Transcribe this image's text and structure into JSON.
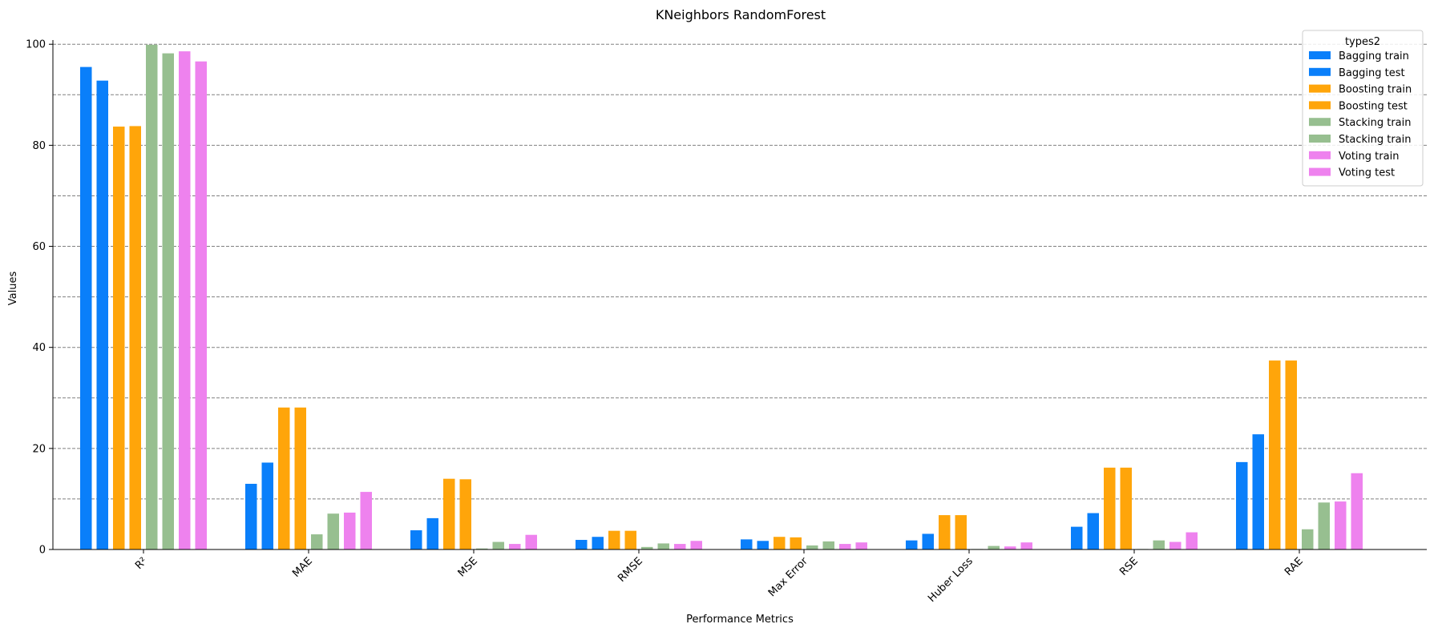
{
  "chart_data": {
    "type": "bar",
    "title": "KNeighbors RandomForest",
    "xlabel": "Performance Metrics",
    "ylabel": "Values",
    "ylim": [
      0,
      104
    ],
    "yticks": [
      0,
      20,
      40,
      60,
      80,
      100
    ],
    "ygrid": [
      10,
      20,
      30,
      40,
      50,
      60,
      70,
      80,
      90,
      100
    ],
    "grid": "horizontal dashed",
    "legend_position": "top-right",
    "legend_title": "types2",
    "categories": [
      "R²",
      "MAE",
      "MSE",
      "RMSE",
      "Max Error",
      "Huber Loss",
      "RSE",
      "RAE"
    ],
    "series": [
      {
        "name": "Bagging train",
        "color": "#0a7ffa",
        "values": [
          95.5,
          13.0,
          3.8,
          1.9,
          2.0,
          1.8,
          4.5,
          17.3
        ]
      },
      {
        "name": "Bagging test",
        "color": "#0a7ffa",
        "values": [
          92.8,
          17.2,
          6.2,
          2.5,
          1.7,
          3.1,
          7.2,
          22.8
        ]
      },
      {
        "name": "Boosting train",
        "color": "#ffa50a",
        "values": [
          83.7,
          28.1,
          14.0,
          3.7,
          2.5,
          6.8,
          16.2,
          37.4
        ]
      },
      {
        "name": "Boosting test",
        "color": "#ffa50a",
        "values": [
          83.8,
          28.1,
          13.9,
          3.7,
          2.4,
          6.8,
          16.2,
          37.4
        ]
      },
      {
        "name": "Stacking train",
        "color": "#97bf90",
        "values": [
          99.9,
          3.0,
          0.2,
          0.5,
          0.8,
          0.1,
          0.1,
          4.0
        ]
      },
      {
        "name": "Stacking train",
        "color": "#97bf90",
        "values": [
          98.2,
          7.1,
          1.5,
          1.2,
          1.6,
          0.7,
          1.8,
          9.3
        ]
      },
      {
        "name": "Voting train",
        "color": "#ee82ee",
        "values": [
          98.6,
          7.3,
          1.1,
          1.1,
          1.1,
          0.6,
          1.5,
          9.5
        ]
      },
      {
        "name": "Voting test",
        "color": "#ee82ee",
        "values": [
          96.6,
          11.4,
          2.9,
          1.7,
          1.4,
          1.4,
          3.4,
          15.1
        ]
      }
    ]
  }
}
